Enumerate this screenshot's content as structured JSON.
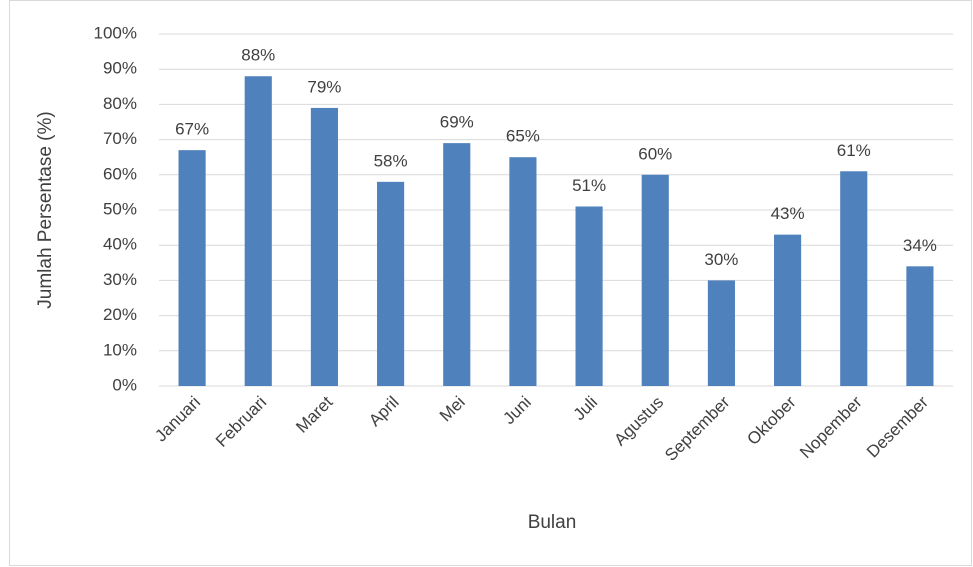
{
  "chart_data": {
    "type": "bar",
    "x_label": "Bulan",
    "y_label": "Jumlah Persentase (%)",
    "categories": [
      "Januari",
      "Februari",
      "Maret",
      "April",
      "Mei",
      "Juni",
      "Juli",
      "Agustus",
      "September",
      "Oktober",
      "Nopember",
      "Desember"
    ],
    "values": [
      67,
      88,
      79,
      58,
      69,
      65,
      51,
      60,
      30,
      43,
      61,
      34
    ],
    "value_labels": [
      "67%",
      "88%",
      "79%",
      "58%",
      "69%",
      "65%",
      "51%",
      "60%",
      "30%",
      "43%",
      "61%",
      "34%"
    ],
    "color": "#4f81bd",
    "ylim": [
      0,
      100
    ],
    "yticks": [
      {
        "value": 0,
        "label": "0%"
      },
      {
        "value": 10,
        "label": "10%"
      },
      {
        "value": 20,
        "label": "20%"
      },
      {
        "value": 30,
        "label": "30%"
      },
      {
        "value": 40,
        "label": "40%"
      },
      {
        "value": 50,
        "label": "50%"
      },
      {
        "value": 60,
        "label": "60%"
      },
      {
        "value": 70,
        "label": "70%"
      },
      {
        "value": 80,
        "label": "80%"
      },
      {
        "value": 90,
        "label": "90%"
      },
      {
        "value": 100,
        "label": "100%"
      }
    ],
    "grid": true
  }
}
